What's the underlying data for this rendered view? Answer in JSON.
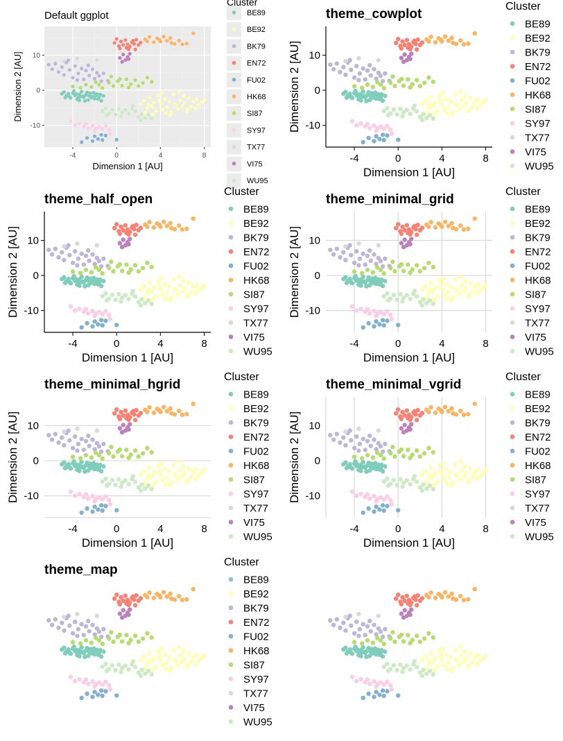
{
  "chart_data": {
    "type": "scatter",
    "xlabel": "Dimension 1 [AU]",
    "ylabel": "Dimension 2 [AU]",
    "x_ticks": [
      -4,
      0,
      4,
      8
    ],
    "y_ticks": [
      -10,
      0,
      10
    ],
    "x_tick_labels": [
      "-4",
      "0",
      "4",
      "8"
    ],
    "y_tick_labels": [
      "-10",
      "0",
      "10"
    ],
    "xlim": [
      -6.6,
      8.6
    ],
    "ylim": [
      -16.2,
      18.2
    ],
    "legend_title": "Cluster",
    "legend_position": "right",
    "panels": [
      {
        "title": "Default ggplot",
        "theme": "default"
      },
      {
        "title": "theme_cowplot",
        "theme": "cowplot"
      },
      {
        "title": "theme_half_open",
        "theme": "half_open"
      },
      {
        "title": "theme_minimal_grid",
        "theme": "minimal_grid"
      },
      {
        "title": "theme_minimal_hgrid",
        "theme": "minimal_hgrid"
      },
      {
        "title": "theme_minimal_vgrid",
        "theme": "minimal_vgrid"
      },
      {
        "title": "theme_map",
        "theme": "map"
      },
      {
        "title": "",
        "theme": "nothing"
      }
    ],
    "series": [
      {
        "name": "BE89",
        "color": "#7fcdbb",
        "points": [
          [
            -5,
            -1
          ],
          [
            -4.8,
            -0.5
          ],
          [
            -4.6,
            -1.6
          ],
          [
            -4.4,
            -1
          ],
          [
            -4.2,
            -2.2
          ],
          [
            -4,
            -0.8
          ],
          [
            -3.8,
            -1.5
          ],
          [
            -3.6,
            -2.6
          ],
          [
            -3.4,
            -1.2
          ],
          [
            -3.2,
            -0.4
          ],
          [
            -3,
            -2
          ],
          [
            -2.8,
            -1.3
          ],
          [
            -2.6,
            -2.8
          ],
          [
            -2.4,
            -0.9
          ],
          [
            -2.2,
            -1.8
          ],
          [
            -2,
            -2.4
          ],
          [
            -1.8,
            -1.1
          ],
          [
            -1.6,
            -2
          ],
          [
            -1.4,
            -3
          ],
          [
            -1.2,
            -1.6
          ],
          [
            -3.9,
            -0.2
          ],
          [
            -3.5,
            -2.1
          ],
          [
            -3.1,
            -1.7
          ],
          [
            -2.7,
            -0.6
          ],
          [
            -2.3,
            -2.1
          ],
          [
            -1.9,
            -1.5
          ],
          [
            -4.3,
            -1.9
          ],
          [
            -2.9,
            -3.1
          ],
          [
            -2.1,
            -0.7
          ],
          [
            -3.3,
            -1.8
          ],
          [
            -1.7,
            -2.5
          ],
          [
            -4.7,
            -2.1
          ],
          [
            -3.7,
            -1.1
          ],
          [
            -2.5,
            -1.6
          ],
          [
            -1.5,
            -1.2
          ],
          [
            -3.4,
            -2.9
          ]
        ]
      },
      {
        "name": "BE92",
        "color": "#ffffb3",
        "points": [
          [
            2.2,
            -4
          ],
          [
            2.5,
            -3
          ],
          [
            2.8,
            -5
          ],
          [
            3,
            -2
          ],
          [
            3.2,
            -4.5
          ],
          [
            3.4,
            -3.5
          ],
          [
            3.6,
            -6
          ],
          [
            3.8,
            -1.5
          ],
          [
            4,
            -4
          ],
          [
            4.2,
            -5.5
          ],
          [
            4.4,
            -2.5
          ],
          [
            4.6,
            -4.8
          ],
          [
            4.8,
            -3.2
          ],
          [
            5,
            -6.2
          ],
          [
            5.2,
            -1.2
          ],
          [
            5.4,
            -4.2
          ],
          [
            5.6,
            -5.4
          ],
          [
            5.8,
            -2.8
          ],
          [
            6,
            -4.5
          ],
          [
            6.2,
            -3.6
          ],
          [
            6.4,
            -6
          ],
          [
            6.6,
            -2.2
          ],
          [
            6.8,
            -4.6
          ],
          [
            7,
            -3.2
          ],
          [
            7.2,
            -5.2
          ],
          [
            7.5,
            -4.2
          ],
          [
            7.8,
            -3.4
          ],
          [
            8,
            -2.8
          ],
          [
            2.6,
            -6.4
          ],
          [
            3.3,
            -6.8
          ],
          [
            4.1,
            -0.8
          ],
          [
            4.9,
            -7
          ],
          [
            5.7,
            -0.3
          ],
          [
            6.5,
            -5.6
          ],
          [
            3.9,
            -2.9
          ],
          [
            4.5,
            -6.6
          ],
          [
            5.3,
            -3.9
          ],
          [
            2.9,
            -4.1
          ],
          [
            6.1,
            -1.6
          ],
          [
            7.3,
            -2.6
          ]
        ]
      },
      {
        "name": "BK79",
        "color": "#bcb6da",
        "points": [
          [
            -6.2,
            7.3
          ],
          [
            -5.9,
            6
          ],
          [
            -5.6,
            7.6
          ],
          [
            -5.3,
            5.2
          ],
          [
            -5,
            6.6
          ],
          [
            -4.8,
            4.4
          ],
          [
            -4.6,
            7.9
          ],
          [
            -4.3,
            5.8
          ],
          [
            -4,
            3.6
          ],
          [
            -3.8,
            6.9
          ],
          [
            -3.5,
            4.8
          ],
          [
            -3.2,
            6.2
          ],
          [
            -3,
            3.1
          ],
          [
            -2.8,
            5.6
          ],
          [
            -2.5,
            4.2
          ],
          [
            -2.2,
            6
          ],
          [
            -2,
            3.3
          ],
          [
            -1.8,
            5
          ],
          [
            -1.6,
            4.1
          ],
          [
            -1.4,
            2.6
          ],
          [
            -1.2,
            4.8
          ],
          [
            -0.8,
            2.7
          ],
          [
            -4.4,
            8.6
          ],
          [
            -3.6,
            2.9
          ],
          [
            -2.6,
            7.1
          ]
        ]
      },
      {
        "name": "EN72",
        "color": "#fb8072",
        "points": [
          [
            -0.2,
            13.5
          ],
          [
            0,
            14.6
          ],
          [
            0.2,
            12.6
          ],
          [
            0.4,
            13.9
          ],
          [
            0.6,
            12.9
          ],
          [
            0.8,
            14.3
          ],
          [
            1,
            13.1
          ],
          [
            1.2,
            12.4
          ],
          [
            1.4,
            13.7
          ],
          [
            1.6,
            13.2
          ],
          [
            1.8,
            14.4
          ],
          [
            2,
            12.9
          ],
          [
            2.2,
            13.6
          ],
          [
            0.3,
            11.9
          ],
          [
            1.1,
            11.7
          ],
          [
            1.7,
            11.6
          ],
          [
            0.9,
            12.1
          ],
          [
            1.5,
            14.1
          ]
        ]
      },
      {
        "name": "FU02",
        "color": "#80b1d3",
        "points": [
          [
            -3.2,
            -14.8
          ],
          [
            -2.7,
            -13.6
          ],
          [
            -2.2,
            -14.5
          ],
          [
            -2,
            -13.1
          ],
          [
            -1.7,
            -13.9
          ],
          [
            -1.4,
            -12.7
          ],
          [
            -1.3,
            -14.2
          ],
          [
            -1,
            -12.9
          ],
          [
            0,
            -14.1
          ]
        ]
      },
      {
        "name": "HK68",
        "color": "#fdb462",
        "points": [
          [
            2.6,
            14.5
          ],
          [
            3,
            15.2
          ],
          [
            3.4,
            13.7
          ],
          [
            3.7,
            14.8
          ],
          [
            4,
            13.9
          ],
          [
            4.3,
            15.3
          ],
          [
            4.6,
            14.1
          ],
          [
            5,
            13.5
          ],
          [
            5.3,
            13.2
          ],
          [
            5.7,
            14.2
          ],
          [
            6,
            13.1
          ],
          [
            6.4,
            13.3
          ],
          [
            7,
            16.2
          ],
          [
            3.9,
            14.4
          ],
          [
            4.9,
            14.9
          ],
          [
            2.8,
            13.9
          ]
        ]
      },
      {
        "name": "SI87",
        "color": "#b3de69",
        "points": [
          [
            -4,
            1.1
          ],
          [
            -3.3,
            0.7
          ],
          [
            -2.8,
            1.6
          ],
          [
            -2.3,
            0.9
          ],
          [
            -1.9,
            2.3
          ],
          [
            -1.3,
            0.6
          ],
          [
            -0.7,
            2.1
          ],
          [
            -0.3,
            1.2
          ],
          [
            0.1,
            2.6
          ],
          [
            0.5,
            1.3
          ],
          [
            0.9,
            3.1
          ],
          [
            1.3,
            1.7
          ],
          [
            1.7,
            2.9
          ],
          [
            2,
            1.2
          ],
          [
            2.4,
            2.1
          ],
          [
            2.8,
            3.6
          ],
          [
            -0.5,
            3.9
          ],
          [
            0.3,
            3.2
          ],
          [
            1.1,
            0.8
          ],
          [
            -1.6,
            1.6
          ],
          [
            3.2,
            2.4
          ]
        ]
      },
      {
        "name": "SY97",
        "color": "#fccde5",
        "points": [
          [
            -4.2,
            -8.8
          ],
          [
            -3.8,
            -10
          ],
          [
            -3.4,
            -9.5
          ],
          [
            -3,
            -10.3
          ],
          [
            -2.6,
            -10.8
          ],
          [
            -2.2,
            -10.1
          ],
          [
            -1.9,
            -10.9
          ],
          [
            -1.6,
            -10.4
          ],
          [
            -1.3,
            -11
          ],
          [
            -1,
            -10.2
          ],
          [
            -0.7,
            -11.2
          ],
          [
            -0.6,
            -12.4
          ],
          [
            -2.8,
            -9.6
          ],
          [
            -2,
            -11.6
          ]
        ]
      },
      {
        "name": "TX77",
        "color": "#d9d9d9",
        "points": [
          [
            -4.8,
            8.3
          ],
          [
            -3.6,
            9.1
          ],
          [
            -1.8,
            8.6
          ]
        ]
      },
      {
        "name": "VI75",
        "color": "#bc80bd",
        "points": [
          [
            0.3,
            9.2
          ],
          [
            0.6,
            10.2
          ],
          [
            0.8,
            8.6
          ],
          [
            1,
            9.5
          ],
          [
            1.2,
            10.4
          ],
          [
            0.5,
            8.1
          ],
          [
            1.1,
            8.9
          ]
        ]
      },
      {
        "name": "WU95",
        "color": "#ccebc5",
        "points": [
          [
            -1.3,
            -5.9
          ],
          [
            -1,
            -5.1
          ],
          [
            -0.7,
            -6.6
          ],
          [
            -0.4,
            -5.5
          ],
          [
            -0.1,
            -6.9
          ],
          [
            0.2,
            -5.3
          ],
          [
            0.5,
            -6.3
          ],
          [
            0.8,
            -5.6
          ],
          [
            1.1,
            -6.7
          ],
          [
            1.4,
            -5.2
          ],
          [
            1.7,
            -6
          ],
          [
            2,
            -7.6
          ],
          [
            2.3,
            -6.8
          ],
          [
            2.6,
            -7.9
          ],
          [
            2.9,
            -7.1
          ],
          [
            3.2,
            -8.1
          ],
          [
            -0.9,
            -7.1
          ],
          [
            0.4,
            -7.4
          ],
          [
            1.5,
            -4.4
          ],
          [
            2.2,
            -8.5
          ]
        ]
      }
    ]
  }
}
